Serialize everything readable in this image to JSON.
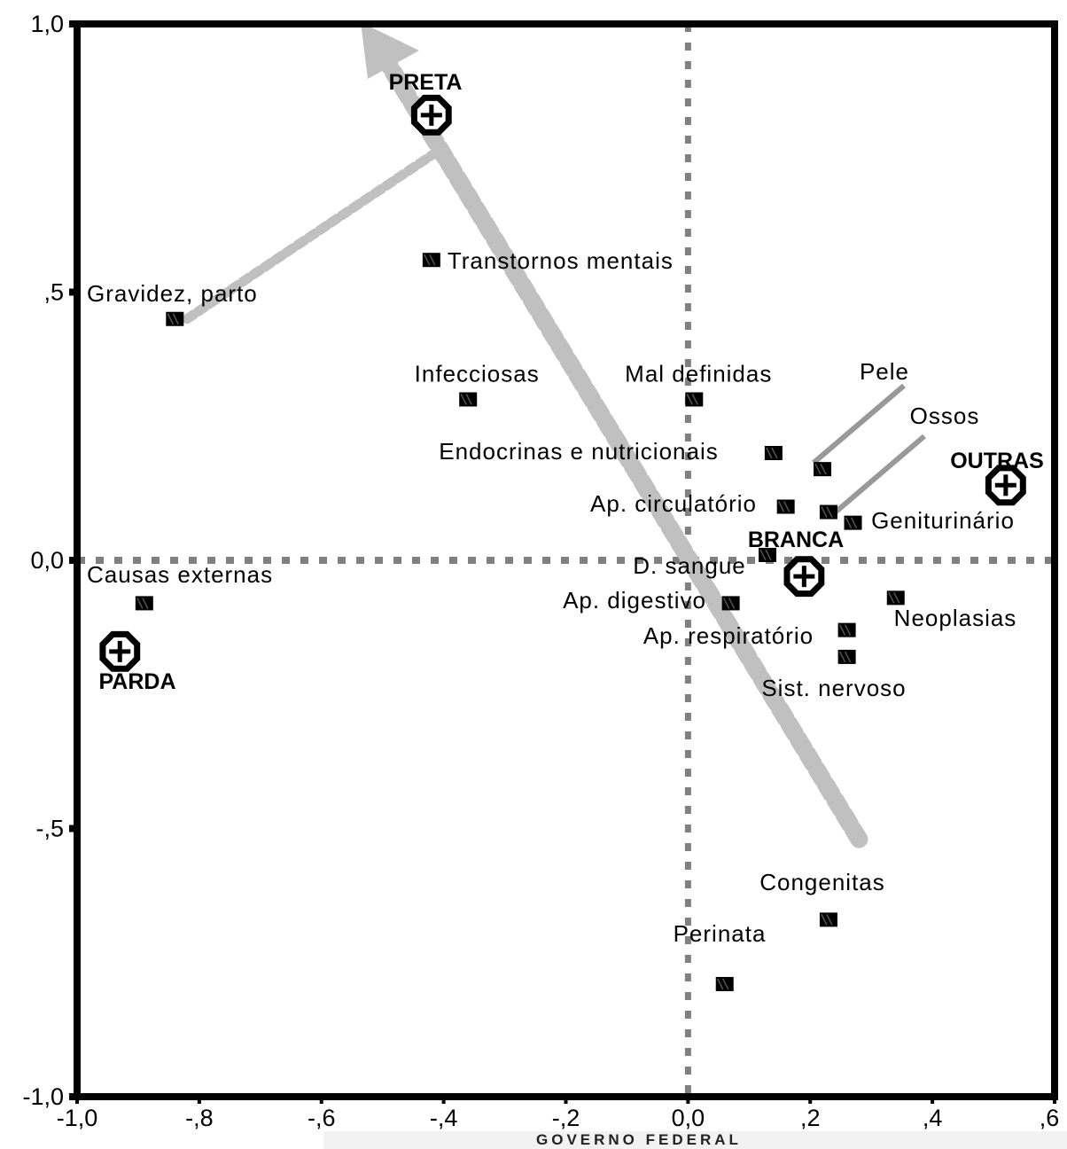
{
  "chart_data": {
    "type": "scatter",
    "xlim": [
      -1.0,
      0.6
    ],
    "ylim": [
      -1.0,
      1.0
    ],
    "x_ticks": [
      {
        "value": -1.0,
        "label": "-1,0"
      },
      {
        "value": -0.8,
        "label": "-,8"
      },
      {
        "value": -0.6,
        "label": "-,6"
      },
      {
        "value": -0.4,
        "label": "-,4"
      },
      {
        "value": -0.2,
        "label": "-,2"
      },
      {
        "value": 0.0,
        "label": "0,0"
      },
      {
        "value": 0.2,
        "label": ",2"
      },
      {
        "value": 0.4,
        "label": ",4"
      },
      {
        "value": 0.6,
        "label": ",6"
      }
    ],
    "y_ticks": [
      {
        "value": 1.0,
        "label": "1,0"
      },
      {
        "value": 0.5,
        "label": ",5"
      },
      {
        "value": 0.0,
        "label": "0,0"
      },
      {
        "value": -0.5,
        "label": "-,5"
      },
      {
        "value": -1.0,
        "label": "-1,0"
      }
    ],
    "grid": false,
    "categories": [
      {
        "label": "Transtornos mentais",
        "x": -0.42,
        "y": 0.56
      },
      {
        "label": "Gravidez, parto",
        "x": -0.84,
        "y": 0.45
      },
      {
        "label": "Infecciosas",
        "x": -0.36,
        "y": 0.3
      },
      {
        "label": "Mal definidas",
        "x": 0.01,
        "y": 0.3
      },
      {
        "label": "Pele",
        "x": 0.22,
        "y": 0.17
      },
      {
        "label": "Ossos",
        "x": 0.23,
        "y": 0.09
      },
      {
        "label": "Endocrinas e nutricionais",
        "x": 0.14,
        "y": 0.2
      },
      {
        "label": "Ap. circulatório",
        "x": 0.16,
        "y": 0.1
      },
      {
        "label": "Geniturinário",
        "x": 0.27,
        "y": 0.07
      },
      {
        "label": "D. sangue",
        "x": 0.13,
        "y": 0.01
      },
      {
        "label": "Causas externas",
        "x": -0.89,
        "y": -0.08
      },
      {
        "label": "Ap. digestivo",
        "x": 0.07,
        "y": -0.08
      },
      {
        "label": "Neoplasias",
        "x": 0.34,
        "y": -0.07
      },
      {
        "label": "Ap. respiratório",
        "x": 0.26,
        "y": -0.13
      },
      {
        "label": "Sist. nervoso",
        "x": 0.26,
        "y": -0.18
      },
      {
        "label": "Congenitas",
        "x": 0.23,
        "y": -0.67
      },
      {
        "label": "Perinata",
        "x": 0.06,
        "y": -0.79
      }
    ],
    "groups": [
      {
        "label": "PRETA",
        "x": -0.42,
        "y": 0.83
      },
      {
        "label": "BRANCA",
        "x": 0.19,
        "y": -0.03
      },
      {
        "label": "OUTRAS",
        "x": 0.52,
        "y": 0.14
      },
      {
        "label": "PARDA",
        "x": -0.93,
        "y": -0.17
      }
    ],
    "annotations": {
      "main_arrow": {
        "from": [
          0.28,
          -0.52
        ],
        "to": [
          -0.53,
          1.0
        ]
      },
      "branch": {
        "from": [
          -0.82,
          0.45
        ],
        "to": [
          -0.4,
          0.77
        ]
      }
    }
  },
  "footer": {
    "text": "GOVERNO FEDERAL"
  },
  "colors": {
    "axis": "#000000",
    "dotted_axis": "#808080",
    "arrow": "#c0c0c0",
    "leader": "#999999",
    "marker": "#000000"
  }
}
